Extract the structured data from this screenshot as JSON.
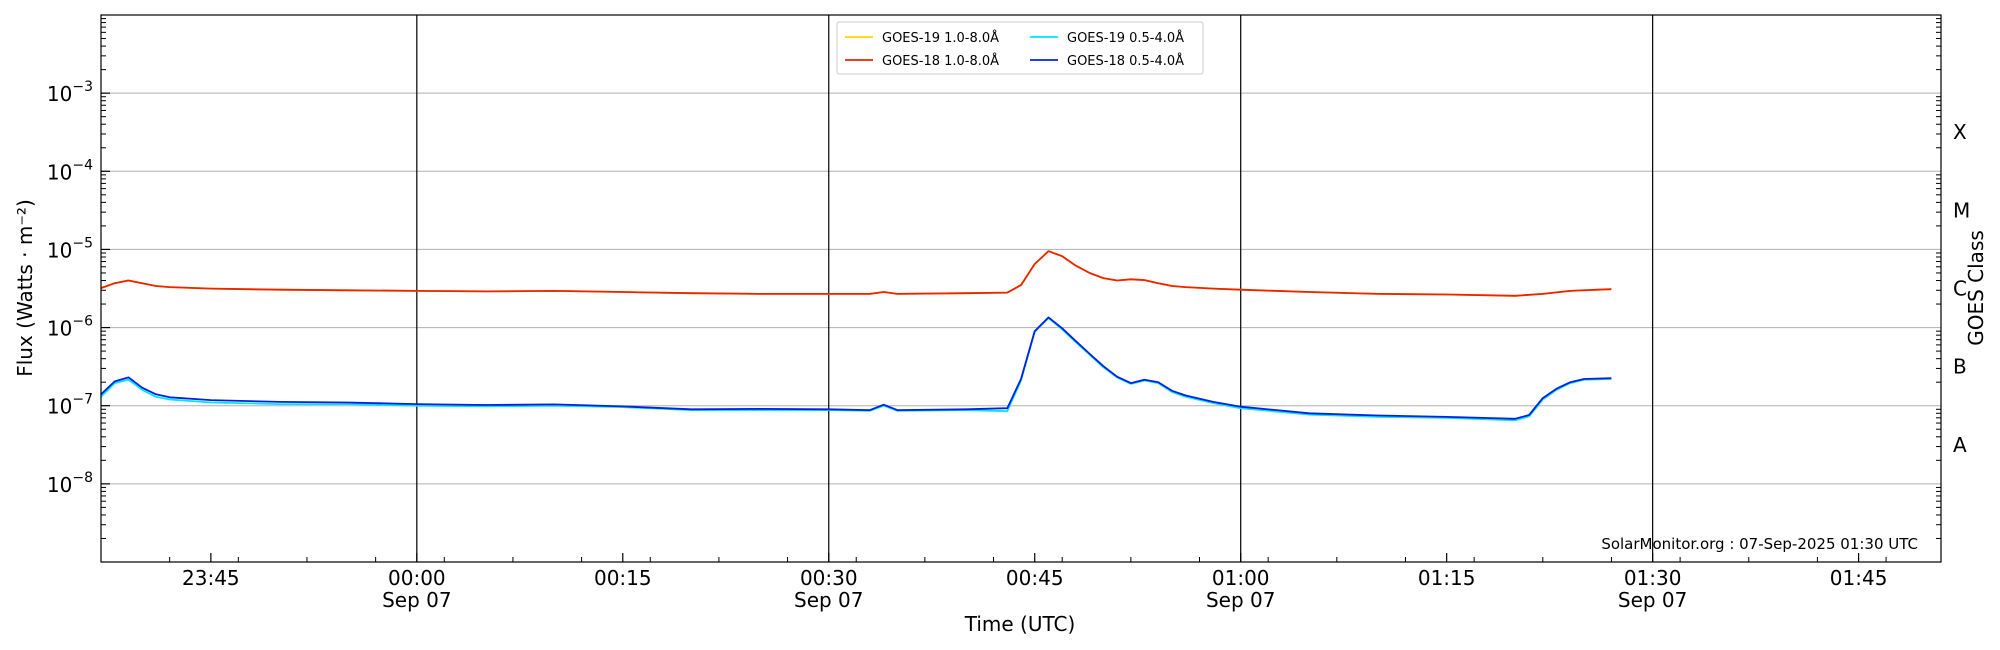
{
  "chart_data": {
    "type": "line",
    "title": "",
    "xlabel": "Time (UTC)",
    "ylabel": "Flux (Watts · m⁻²)",
    "y2label": "GOES Class",
    "y_scale": "log",
    "ylim": [
      1e-09,
      0.01
    ],
    "xlim": [
      "2025-09-06 23:37",
      "2025-09-07 01:51"
    ],
    "grid": "horizontal at decades",
    "legend_position": "top-center",
    "x_ticks": [
      {
        "time": "2025-09-06 23:45",
        "label": "23:45",
        "sublabel": ""
      },
      {
        "time": "2025-09-07 00:00",
        "label": "00:00",
        "sublabel": "Sep 07"
      },
      {
        "time": "2025-09-07 00:15",
        "label": "00:15",
        "sublabel": ""
      },
      {
        "time": "2025-09-07 00:30",
        "label": "00:30",
        "sublabel": "Sep 07"
      },
      {
        "time": "2025-09-07 00:45",
        "label": "00:45",
        "sublabel": ""
      },
      {
        "time": "2025-09-07 01:00",
        "label": "01:00",
        "sublabel": "Sep 07"
      },
      {
        "time": "2025-09-07 01:15",
        "label": "01:15",
        "sublabel": ""
      },
      {
        "time": "2025-09-07 01:30",
        "label": "01:30",
        "sublabel": "Sep 07"
      },
      {
        "time": "2025-09-07 01:45",
        "label": "01:45",
        "sublabel": ""
      }
    ],
    "vertical_lines": [
      "2025-09-07 00:00",
      "2025-09-07 00:30",
      "2025-09-07 01:00",
      "2025-09-07 01:30"
    ],
    "y_ticks": [
      {
        "value": 1e-08,
        "label": "10",
        "exp": "−8"
      },
      {
        "value": 1e-07,
        "label": "10",
        "exp": "−7"
      },
      {
        "value": 1e-06,
        "label": "10",
        "exp": "−6"
      },
      {
        "value": 1e-05,
        "label": "10",
        "exp": "−5"
      },
      {
        "value": 0.0001,
        "label": "10",
        "exp": "−4"
      },
      {
        "value": 0.001,
        "label": "10",
        "exp": "−3"
      }
    ],
    "goes_classes": [
      {
        "label": "A",
        "value": 3.16e-08
      },
      {
        "label": "B",
        "value": 3.16e-07
      },
      {
        "label": "C",
        "value": 3.16e-06
      },
      {
        "label": "M",
        "value": 3.16e-05
      },
      {
        "label": "X",
        "value": 0.000316
      }
    ],
    "series": [
      {
        "name": "GOES-19 1.0-8.0Å",
        "color": "#FFD700",
        "x": [
          "2025-09-06 23:37",
          "2025-09-06 23:38",
          "2025-09-06 23:39",
          "2025-09-06 23:40",
          "2025-09-06 23:41",
          "2025-09-06 23:42",
          "2025-09-06 23:45",
          "2025-09-06 23:50",
          "2025-09-06 23:55",
          "2025-09-07 00:00",
          "2025-09-07 00:05",
          "2025-09-07 00:10",
          "2025-09-07 00:15",
          "2025-09-07 00:20",
          "2025-09-07 00:25",
          "2025-09-07 00:30",
          "2025-09-07 00:33",
          "2025-09-07 00:34",
          "2025-09-07 00:35",
          "2025-09-07 00:40",
          "2025-09-07 00:43",
          "2025-09-07 00:44",
          "2025-09-07 00:45",
          "2025-09-07 00:46",
          "2025-09-07 00:47",
          "2025-09-07 00:48",
          "2025-09-07 00:49",
          "2025-09-07 00:50",
          "2025-09-07 00:51",
          "2025-09-07 00:52",
          "2025-09-07 00:53",
          "2025-09-07 00:54",
          "2025-09-07 00:55",
          "2025-09-07 00:56",
          "2025-09-07 00:58",
          "2025-09-07 01:00",
          "2025-09-07 01:05",
          "2025-09-07 01:10",
          "2025-09-07 01:15",
          "2025-09-07 01:20",
          "2025-09-07 01:22",
          "2025-09-07 01:24",
          "2025-09-07 01:26",
          "2025-09-07 01:27"
        ],
        "values": [
          3.2e-06,
          3.7e-06,
          4e-06,
          3.7e-06,
          3.4e-06,
          3.3e-06,
          3.15e-06,
          3.05e-06,
          3e-06,
          2.95e-06,
          2.9e-06,
          2.95e-06,
          2.85e-06,
          2.75e-06,
          2.7e-06,
          2.7e-06,
          2.7e-06,
          2.85e-06,
          2.7e-06,
          2.75e-06,
          2.8e-06,
          3.5e-06,
          6.5e-06,
          9.5e-06,
          8.2e-06,
          6.2e-06,
          5e-06,
          4.3e-06,
          4e-06,
          4.15e-06,
          4.05e-06,
          3.7e-06,
          3.4e-06,
          3.3e-06,
          3.15e-06,
          3.05e-06,
          2.85e-06,
          2.7e-06,
          2.65e-06,
          2.55e-06,
          2.7e-06,
          2.95e-06,
          3.05e-06,
          3.1e-06
        ]
      },
      {
        "name": "GOES-18 1.0-8.0Å",
        "color": "#EE2200",
        "x": [
          "2025-09-06 23:37",
          "2025-09-06 23:38",
          "2025-09-06 23:39",
          "2025-09-06 23:40",
          "2025-09-06 23:41",
          "2025-09-06 23:42",
          "2025-09-06 23:45",
          "2025-09-06 23:50",
          "2025-09-06 23:55",
          "2025-09-07 00:00",
          "2025-09-07 00:05",
          "2025-09-07 00:10",
          "2025-09-07 00:15",
          "2025-09-07 00:20",
          "2025-09-07 00:25",
          "2025-09-07 00:30",
          "2025-09-07 00:33",
          "2025-09-07 00:34",
          "2025-09-07 00:35",
          "2025-09-07 00:40",
          "2025-09-07 00:43",
          "2025-09-07 00:44",
          "2025-09-07 00:45",
          "2025-09-07 00:46",
          "2025-09-07 00:47",
          "2025-09-07 00:48",
          "2025-09-07 00:49",
          "2025-09-07 00:50",
          "2025-09-07 00:51",
          "2025-09-07 00:52",
          "2025-09-07 00:53",
          "2025-09-07 00:54",
          "2025-09-07 00:55",
          "2025-09-07 00:56",
          "2025-09-07 00:58",
          "2025-09-07 01:00",
          "2025-09-07 01:05",
          "2025-09-07 01:10",
          "2025-09-07 01:15",
          "2025-09-07 01:20",
          "2025-09-07 01:22",
          "2025-09-07 01:24",
          "2025-09-07 01:26",
          "2025-09-07 01:27"
        ],
        "values": [
          3.2e-06,
          3.7e-06,
          4e-06,
          3.7e-06,
          3.4e-06,
          3.3e-06,
          3.15e-06,
          3.05e-06,
          3e-06,
          2.95e-06,
          2.9e-06,
          2.95e-06,
          2.85e-06,
          2.75e-06,
          2.7e-06,
          2.7e-06,
          2.7e-06,
          2.85e-06,
          2.7e-06,
          2.75e-06,
          2.8e-06,
          3.5e-06,
          6.5e-06,
          9.5e-06,
          8.2e-06,
          6.2e-06,
          5e-06,
          4.3e-06,
          4e-06,
          4.15e-06,
          4.05e-06,
          3.7e-06,
          3.4e-06,
          3.3e-06,
          3.15e-06,
          3.05e-06,
          2.85e-06,
          2.7e-06,
          2.65e-06,
          2.55e-06,
          2.7e-06,
          2.95e-06,
          3.05e-06,
          3.1e-06
        ]
      },
      {
        "name": "GOES-19 0.5-4.0Å",
        "color": "#00E5FF",
        "x": [
          "2025-09-06 23:37",
          "2025-09-06 23:38",
          "2025-09-06 23:39",
          "2025-09-06 23:40",
          "2025-09-06 23:41",
          "2025-09-06 23:42",
          "2025-09-06 23:45",
          "2025-09-06 23:50",
          "2025-09-06 23:55",
          "2025-09-07 00:00",
          "2025-09-07 00:05",
          "2025-09-07 00:10",
          "2025-09-07 00:15",
          "2025-09-07 00:20",
          "2025-09-07 00:25",
          "2025-09-07 00:30",
          "2025-09-07 00:33",
          "2025-09-07 00:34",
          "2025-09-07 00:35",
          "2025-09-07 00:40",
          "2025-09-07 00:43",
          "2025-09-07 00:44",
          "2025-09-07 00:45",
          "2025-09-07 00:46",
          "2025-09-07 00:47",
          "2025-09-07 00:48",
          "2025-09-07 00:49",
          "2025-09-07 00:50",
          "2025-09-07 00:51",
          "2025-09-07 00:52",
          "2025-09-07 00:53",
          "2025-09-07 00:54",
          "2025-09-07 00:55",
          "2025-09-07 00:56",
          "2025-09-07 00:58",
          "2025-09-07 01:00",
          "2025-09-07 01:05",
          "2025-09-07 01:10",
          "2025-09-07 01:15",
          "2025-09-07 01:20",
          "2025-09-07 01:21",
          "2025-09-07 01:22",
          "2025-09-07 01:23",
          "2025-09-07 01:24",
          "2025-09-07 01:25",
          "2025-09-07 01:27"
        ],
        "values": [
          1.3e-07,
          1.95e-07,
          2.15e-07,
          1.6e-07,
          1.3e-07,
          1.2e-07,
          1.1e-07,
          1.05e-07,
          1.05e-07,
          1e-07,
          9.8e-08,
          1e-07,
          9.6e-08,
          8.8e-08,
          8.8e-08,
          8.8e-08,
          8.6e-08,
          1e-07,
          8.6e-08,
          8.8e-08,
          8.5e-08,
          2.1e-07,
          8.8e-07,
          1.32e-06,
          9.5e-07,
          6.5e-07,
          4.5e-07,
          3.1e-07,
          2.3e-07,
          1.9e-07,
          2.1e-07,
          1.95e-07,
          1.5e-07,
          1.3e-07,
          1.08e-07,
          9.3e-08,
          7.7e-08,
          7.2e-08,
          7e-08,
          6.5e-08,
          7.3e-08,
          1.2e-07,
          1.6e-07,
          1.95e-07,
          2.15e-07,
          2.2e-07
        ]
      },
      {
        "name": "GOES-18 0.5-4.0Å",
        "color": "#0022DD",
        "x": [
          "2025-09-06 23:37",
          "2025-09-06 23:38",
          "2025-09-06 23:39",
          "2025-09-06 23:40",
          "2025-09-06 23:41",
          "2025-09-06 23:42",
          "2025-09-06 23:45",
          "2025-09-06 23:50",
          "2025-09-06 23:55",
          "2025-09-07 00:00",
          "2025-09-07 00:05",
          "2025-09-07 00:10",
          "2025-09-07 00:15",
          "2025-09-07 00:20",
          "2025-09-07 00:25",
          "2025-09-07 00:30",
          "2025-09-07 00:33",
          "2025-09-07 00:34",
          "2025-09-07 00:35",
          "2025-09-07 00:40",
          "2025-09-07 00:43",
          "2025-09-07 00:44",
          "2025-09-07 00:45",
          "2025-09-07 00:46",
          "2025-09-07 00:47",
          "2025-09-07 00:48",
          "2025-09-07 00:49",
          "2025-09-07 00:50",
          "2025-09-07 00:51",
          "2025-09-07 00:52",
          "2025-09-07 00:53",
          "2025-09-07 00:54",
          "2025-09-07 00:55",
          "2025-09-07 00:56",
          "2025-09-07 00:58",
          "2025-09-07 01:00",
          "2025-09-07 01:05",
          "2025-09-07 01:10",
          "2025-09-07 01:15",
          "2025-09-07 01:20",
          "2025-09-07 01:21",
          "2025-09-07 01:22",
          "2025-09-07 01:23",
          "2025-09-07 01:24",
          "2025-09-07 01:25",
          "2025-09-07 01:27"
        ],
        "values": [
          1.4e-07,
          2.05e-07,
          2.3e-07,
          1.7e-07,
          1.4e-07,
          1.28e-07,
          1.18e-07,
          1.12e-07,
          1.1e-07,
          1.05e-07,
          1.02e-07,
          1.04e-07,
          9.8e-08,
          9e-08,
          9.1e-08,
          9e-08,
          8.8e-08,
          1.03e-07,
          8.8e-08,
          9e-08,
          9.3e-08,
          2.2e-07,
          9e-07,
          1.35e-06,
          9.8e-07,
          6.7e-07,
          4.6e-07,
          3.2e-07,
          2.35e-07,
          1.95e-07,
          2.15e-07,
          2e-07,
          1.55e-07,
          1.35e-07,
          1.12e-07,
          9.7e-08,
          8e-08,
          7.5e-08,
          7.2e-08,
          6.8e-08,
          7.6e-08,
          1.25e-07,
          1.65e-07,
          2e-07,
          2.2e-07,
          2.25e-07
        ]
      }
    ]
  },
  "credit": "SolarMonitor.org : 07-Sep-2025 01:30 UTC"
}
